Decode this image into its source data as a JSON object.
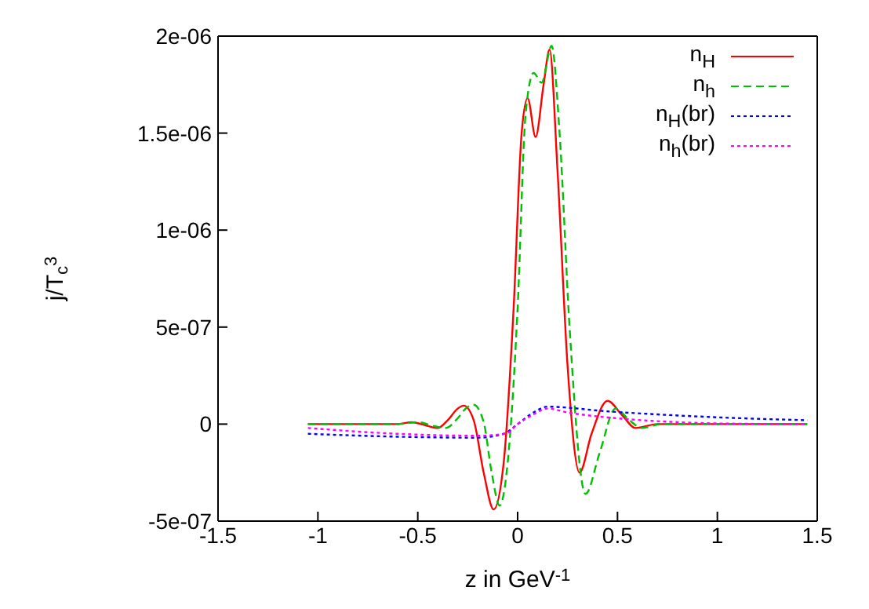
{
  "chart_data": {
    "type": "line",
    "xlabel": "z in GeV$^{-1}$",
    "ylabel": "j/T$_{c}$$^{3}$",
    "xlim": [
      -1.5,
      1.5
    ],
    "xticks": [
      -1.5,
      -1,
      -0.5,
      0,
      0.5,
      1,
      1.5
    ],
    "ylim": [
      -5e-07,
      2e-06
    ],
    "yticks": [
      {
        "value": -5e-07,
        "label": "-5e-07"
      },
      0,
      {
        "value": 5e-07,
        "label": "5e-07"
      },
      {
        "value": 1e-06,
        "label": "1e-06"
      },
      {
        "value": 1.5e-06,
        "label": "1.5e-06"
      },
      {
        "value": 2e-06,
        "label": "2e-06"
      }
    ],
    "legend": "top right",
    "marker": "none",
    "series": [
      {
        "name": "n$_{H}$",
        "color": "#ff0000",
        "line_style": "solid",
        "x": [
          -1.05,
          -0.8,
          -0.6,
          -0.53,
          -0.45,
          -0.4,
          -0.35,
          -0.3,
          -0.27,
          -0.22,
          -0.17,
          -0.12,
          -0.07,
          -0.02,
          0.02,
          0.05,
          0.09,
          0.13,
          0.16,
          0.2,
          0.25,
          0.31,
          0.37,
          0.45,
          0.52,
          0.59,
          0.7,
          0.9,
          1.2,
          1.45
        ],
        "values": [
          0,
          0,
          0,
          1e-08,
          -1e-08,
          -2e-08,
          2e-08,
          8e-08,
          9.5e-08,
          2e-08,
          -2.5e-07,
          -4.4e-07,
          -2e-07,
          6e-07,
          1.5e-06,
          1.68e-06,
          1.48e-06,
          1.75e-06,
          1.93e-06,
          1.3e-06,
          3e-07,
          -2.5e-07,
          -5e-08,
          1.2e-07,
          5e-08,
          -2e-08,
          0,
          0,
          0,
          0
        ]
      },
      {
        "name": "n$_{h}$",
        "color": "#00c000",
        "line_style": "dashed",
        "x": [
          -1.05,
          -0.8,
          -0.6,
          -0.5,
          -0.42,
          -0.36,
          -0.3,
          -0.26,
          -0.22,
          -0.17,
          -0.13,
          -0.09,
          -0.05,
          0,
          0.04,
          0.08,
          0.12,
          0.17,
          0.21,
          0.26,
          0.34,
          0.41,
          0.49,
          0.56,
          0.62,
          0.72,
          0.9,
          1.2,
          1.45
        ],
        "values": [
          0,
          0,
          0,
          1e-08,
          -1e-08,
          -2e-08,
          3e-08,
          8e-08,
          1e-07,
          1e-08,
          -2.5e-07,
          -4.2e-07,
          -2e-07,
          6e-07,
          1.6e-06,
          1.81e-06,
          1.76e-06,
          1.95e-06,
          1.5e-06,
          5e-07,
          -3.6e-07,
          -1.5e-07,
          8e-08,
          2e-08,
          -2e-08,
          0,
          0,
          0,
          0
        ]
      },
      {
        "name": "n$_{H}$(br)",
        "color": "#0000ff",
        "line_style": "dotted",
        "x": [
          -1.05,
          -0.6,
          -0.2,
          -0.07,
          0,
          0.08,
          0.15,
          0.25,
          0.4,
          0.7,
          1.0,
          1.45
        ],
        "values": [
          -5e-08,
          -6.5e-08,
          -7e-08,
          -5e-08,
          0,
          6e-08,
          9e-08,
          8.5e-08,
          7e-08,
          5e-08,
          3.5e-08,
          2e-08
        ]
      },
      {
        "name": "n$_{h}$(br)",
        "color": "#ff00ff",
        "line_style": "dotted",
        "x": [
          -1.05,
          -0.6,
          -0.2,
          -0.06,
          0,
          0.08,
          0.15,
          0.25,
          0.5,
          0.8,
          1.1,
          1.45
        ],
        "values": [
          -2e-08,
          -5e-08,
          -6e-08,
          -5e-08,
          0,
          5e-08,
          8e-08,
          6e-08,
          3e-08,
          1e-08,
          2e-09,
          0
        ]
      }
    ]
  }
}
